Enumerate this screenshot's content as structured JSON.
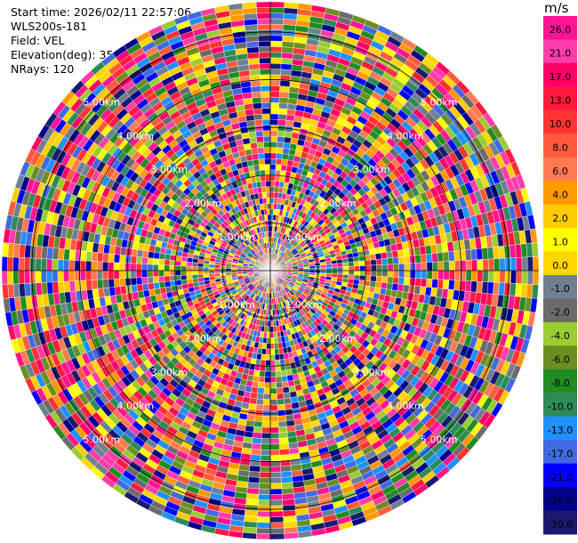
{
  "header": {
    "start_time": "Start time: 2026/02/11 22:57:06",
    "instrument": "WLS200s-181",
    "field": "Field: VEL",
    "elevation": "Elevation(deg): 35.00",
    "nrays": "NRays: 120"
  },
  "colorbar": {
    "unit": "m/s",
    "levels": [
      "26.0",
      "21.0",
      "17.0",
      "13.0",
      "10.0",
      "8.0",
      "6.0",
      "4.0",
      "2.0",
      "1.0",
      "0.0",
      "-1.0",
      "-2.0",
      "-4.0",
      "-6.0",
      "-8.0",
      "-10.0",
      "-13.0",
      "-17.0",
      "-21.0",
      "-26.0",
      "-30.0"
    ],
    "colors": [
      "#ff1493",
      "#ff3caa",
      "#ff0066",
      "#ff1a3c",
      "#ff3232",
      "#ff5a3c",
      "#ff7a50",
      "#ff9900",
      "#ffcc00",
      "#ffff00",
      "#ffd700",
      "#708090",
      "#6b6b6b",
      "#9acd32",
      "#6b8e23",
      "#228b22",
      "#2e8b57",
      "#1e90ff",
      "#4169e1",
      "#0000ff",
      "#00008b",
      "#191970"
    ]
  },
  "chart_data": {
    "type": "heatmap",
    "projection": "polar",
    "field": "VEL",
    "units": "m/s",
    "nrays": 120,
    "elevation_deg": 35.0,
    "range_rings_km": [
      1.0,
      2.0,
      3.0,
      4.0,
      5.0
    ],
    "ring_labels": [
      "1.00km",
      "2.00km",
      "3.00km",
      "4.00km",
      "5.00km"
    ],
    "color_scale": [
      -30.0,
      26.0
    ]
  }
}
